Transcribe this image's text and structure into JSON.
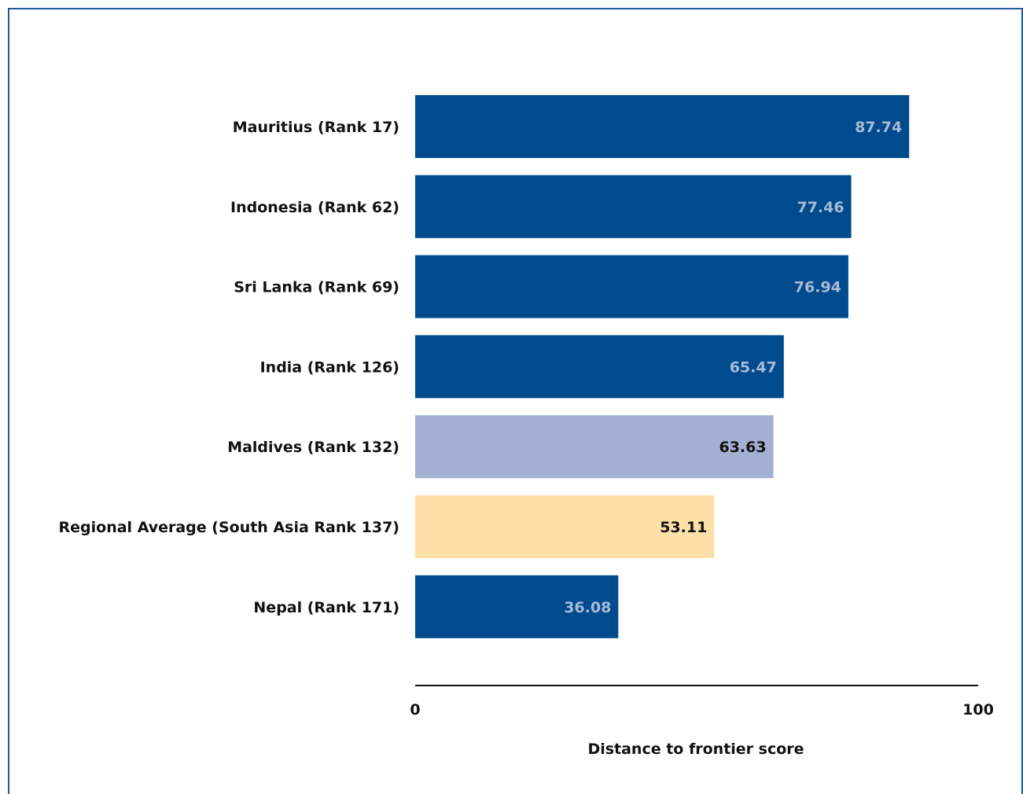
{
  "chart_data": {
    "type": "bar",
    "orientation": "horizontal",
    "title": "",
    "xlabel": "Distance to frontier score",
    "ylabel": "",
    "xlim": [
      0,
      100
    ],
    "x_ticks": [
      "0",
      "100"
    ],
    "grid": false,
    "categories": [
      "Mauritius (Rank 17)",
      "Indonesia (Rank 62)",
      "Sri Lanka (Rank 69)",
      "India (Rank 126)",
      "Maldives (Rank 132)",
      "Regional Average (South Asia Rank 137)",
      "Nepal (Rank 171)"
    ],
    "values": [
      87.74,
      77.46,
      76.94,
      65.47,
      63.63,
      53.11,
      36.08
    ],
    "value_labels": [
      "87.74",
      "77.46",
      "76.94",
      "65.47",
      "63.63",
      "53.11",
      "36.08"
    ],
    "bar_colors": [
      "#004b8d",
      "#004b8d",
      "#004b8d",
      "#004b8d",
      "#a3b0d2",
      "#fde0a8",
      "#004b8d"
    ],
    "value_label_colors": [
      "#a9b9d8",
      "#a9b9d8",
      "#a9b9d8",
      "#a9b9d8",
      "#111111",
      "#111111",
      "#a9b9d8"
    ]
  }
}
